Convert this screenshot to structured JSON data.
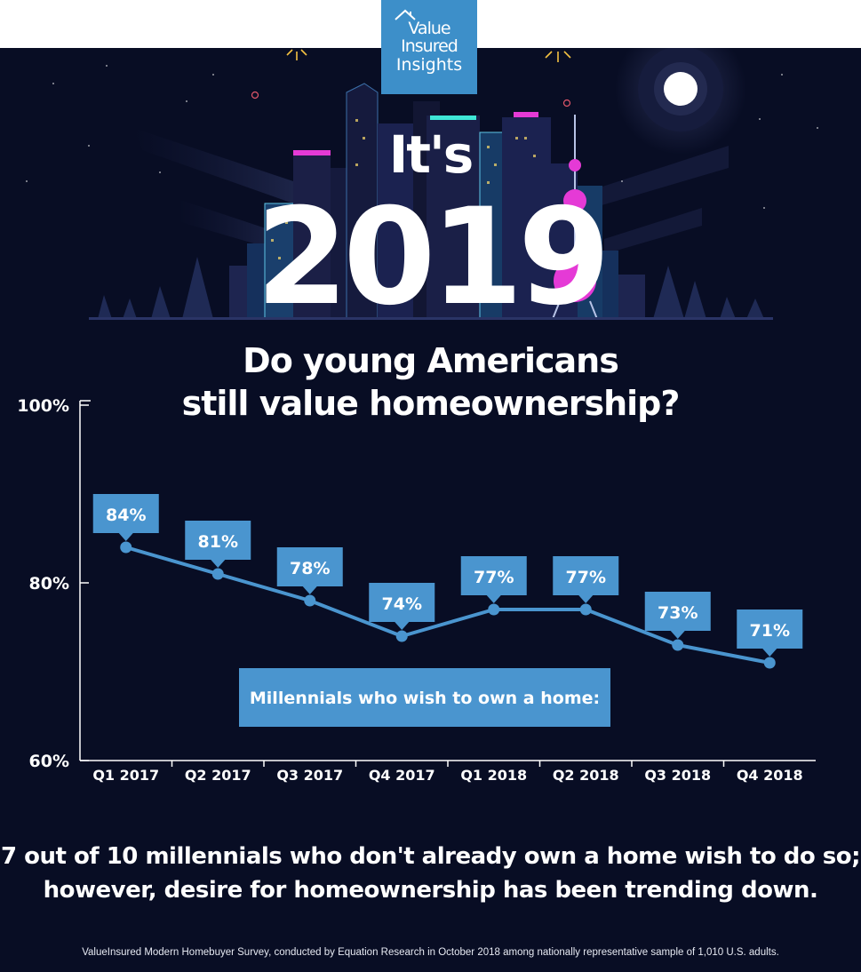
{
  "brand": {
    "logo_line1": "Value",
    "logo_line2": "Insured",
    "logo_line3": "Insights"
  },
  "hero": {
    "pre_title": "It's",
    "year": "2019"
  },
  "headline": {
    "line1": "Do young Americans",
    "line2": "still value homeownership?"
  },
  "chart_data": {
    "type": "line",
    "categories": [
      "Q1 2017",
      "Q2 2017",
      "Q3 2017",
      "Q4 2017",
      "Q1 2018",
      "Q2 2018",
      "Q3 2018",
      "Q4 2018"
    ],
    "series": [
      {
        "name": "Millennials who wish to own a home:",
        "values": [
          84,
          81,
          78,
          74,
          77,
          77,
          73,
          71
        ]
      }
    ],
    "data_labels": [
      "84%",
      "81%",
      "78%",
      "74%",
      "77%",
      "77%",
      "73%",
      "71%"
    ],
    "y_ticks": [
      "100%",
      "80%",
      "60%"
    ],
    "ylim": [
      60,
      100
    ],
    "grid": false,
    "legend": "bottom-center",
    "colors": {
      "line": "#4a95cf",
      "label_bg": "#4a95cf",
      "label_text": "#ffffff",
      "axis": "#ffffff"
    }
  },
  "summary": {
    "line1": "7 out of 10 millennials who don't already own a home wish to do so;",
    "line2": "however, desire for homeownership has been trending down."
  },
  "source": "ValueInsured Modern Homebuyer Survey, conducted by Equation Research in October 2018 among nationally representative sample of 1,010 U.S. adults.",
  "colors": {
    "background": "#080d24",
    "brand_blue": "#3d8fc9",
    "neon_pink": "#e53ad6",
    "neon_teal": "#3fe6d6"
  }
}
